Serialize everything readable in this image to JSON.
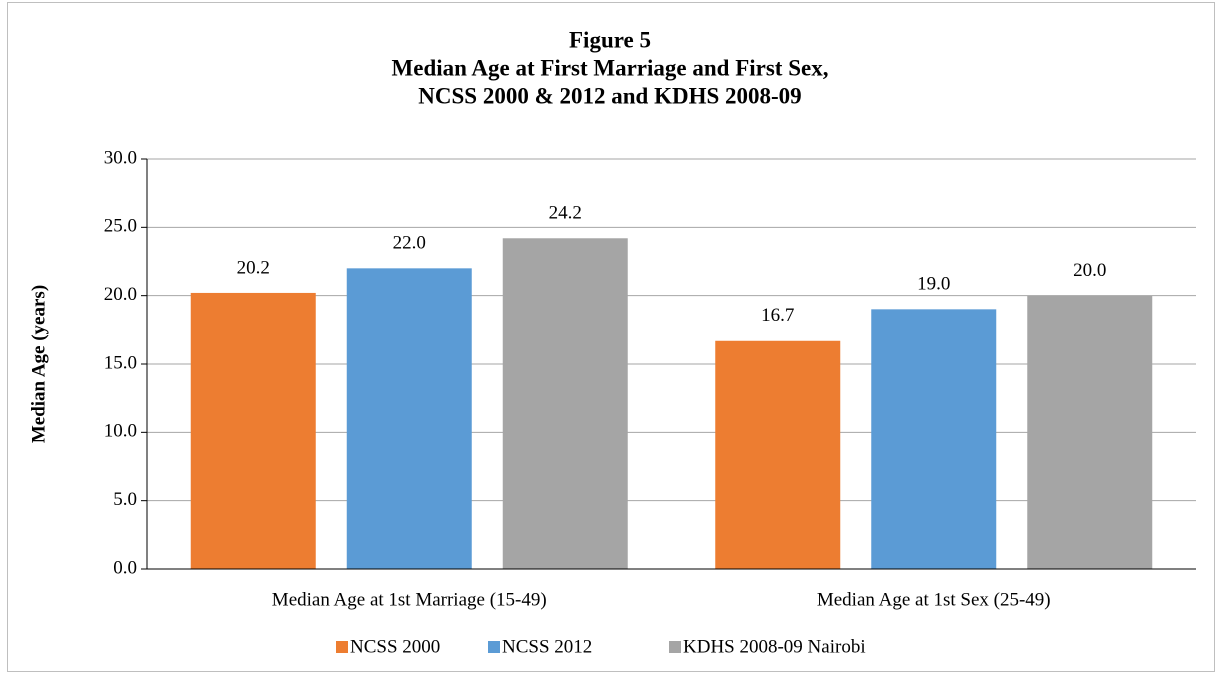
{
  "chart_data": {
    "type": "bar",
    "title": [
      "Figure 5",
      "Median Age at First Marriage and First Sex,",
      "NCSS 2000 & 2012 and KDHS 2008-09"
    ],
    "y_label": "Median Age (years)",
    "categories": [
      "Median Age at 1st Marriage (15-49)",
      "Median Age at 1st Sex (25-49)"
    ],
    "series": [
      {
        "name": "NCSS 2000",
        "color": "#ed7d31",
        "values": [
          20.2,
          16.7
        ],
        "value_labels": [
          "20.2",
          "16.7"
        ]
      },
      {
        "name": "NCSS 2012",
        "color": "#5b9bd5",
        "values": [
          22,
          19
        ],
        "value_labels": [
          "22.0",
          "19.0"
        ]
      },
      {
        "name": "KDHS 2008-09 Nairobi",
        "color": "#a5a5a5",
        "values": [
          24.2,
          20
        ],
        "value_labels": [
          "24.2",
          "20.0"
        ]
      }
    ],
    "ylim": [
      0,
      30
    ],
    "yticks": [
      {
        "value": 0,
        "label": "0.0"
      },
      {
        "value": 5,
        "label": "5.0"
      },
      {
        "value": 10,
        "label": "10.0"
      },
      {
        "value": 15,
        "label": "15.0"
      },
      {
        "value": 20,
        "label": "20.0"
      },
      {
        "value": 25,
        "label": "25.0"
      },
      {
        "value": 30,
        "label": "30.0"
      }
    ],
    "grid": true,
    "legend": "bottom"
  }
}
